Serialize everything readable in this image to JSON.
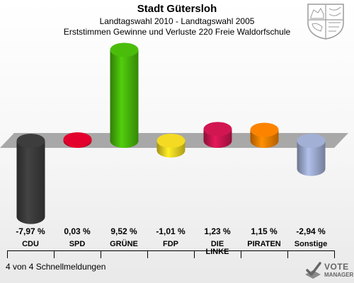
{
  "header": {
    "title": "Stadt Gütersloh",
    "subtitle": "Landtagswahl 2010 - Landtagswahl 2005",
    "subtitle2": "Erststimmen Gewinne und Verluste 220 Freie Waldorfschule"
  },
  "footer": {
    "status": "4 von 4 Schnellmeldungen"
  },
  "logo": {
    "line1": "VOTE",
    "line2": "MANAGER",
    "icon": "ballot-check-icon"
  },
  "crest_icon": "nrw-coat-of-arms-icon",
  "chart_data": {
    "type": "bar",
    "title": "Stadt Gütersloh",
    "categories": [
      "CDU",
      "SPD",
      "GRÜNE",
      "FDP",
      "DIE LINKE",
      "PIRATEN",
      "Sonstige"
    ],
    "values": [
      -7.97,
      0.03,
      9.52,
      -1.01,
      1.23,
      1.15,
      -2.94
    ],
    "value_labels": [
      "-7,97 %",
      "0,03 %",
      "9,52 %",
      "-1,01 %",
      "1,23 %",
      "1,15 %",
      "-2,94 %"
    ],
    "colors": [
      "#3a3a3a",
      "#d8002a",
      "#46b40a",
      "#e8d020",
      "#c8154e",
      "#f07d00",
      "#9aa8cc"
    ],
    "xlabel": "",
    "ylabel": "",
    "grid": false,
    "legend": "none"
  }
}
